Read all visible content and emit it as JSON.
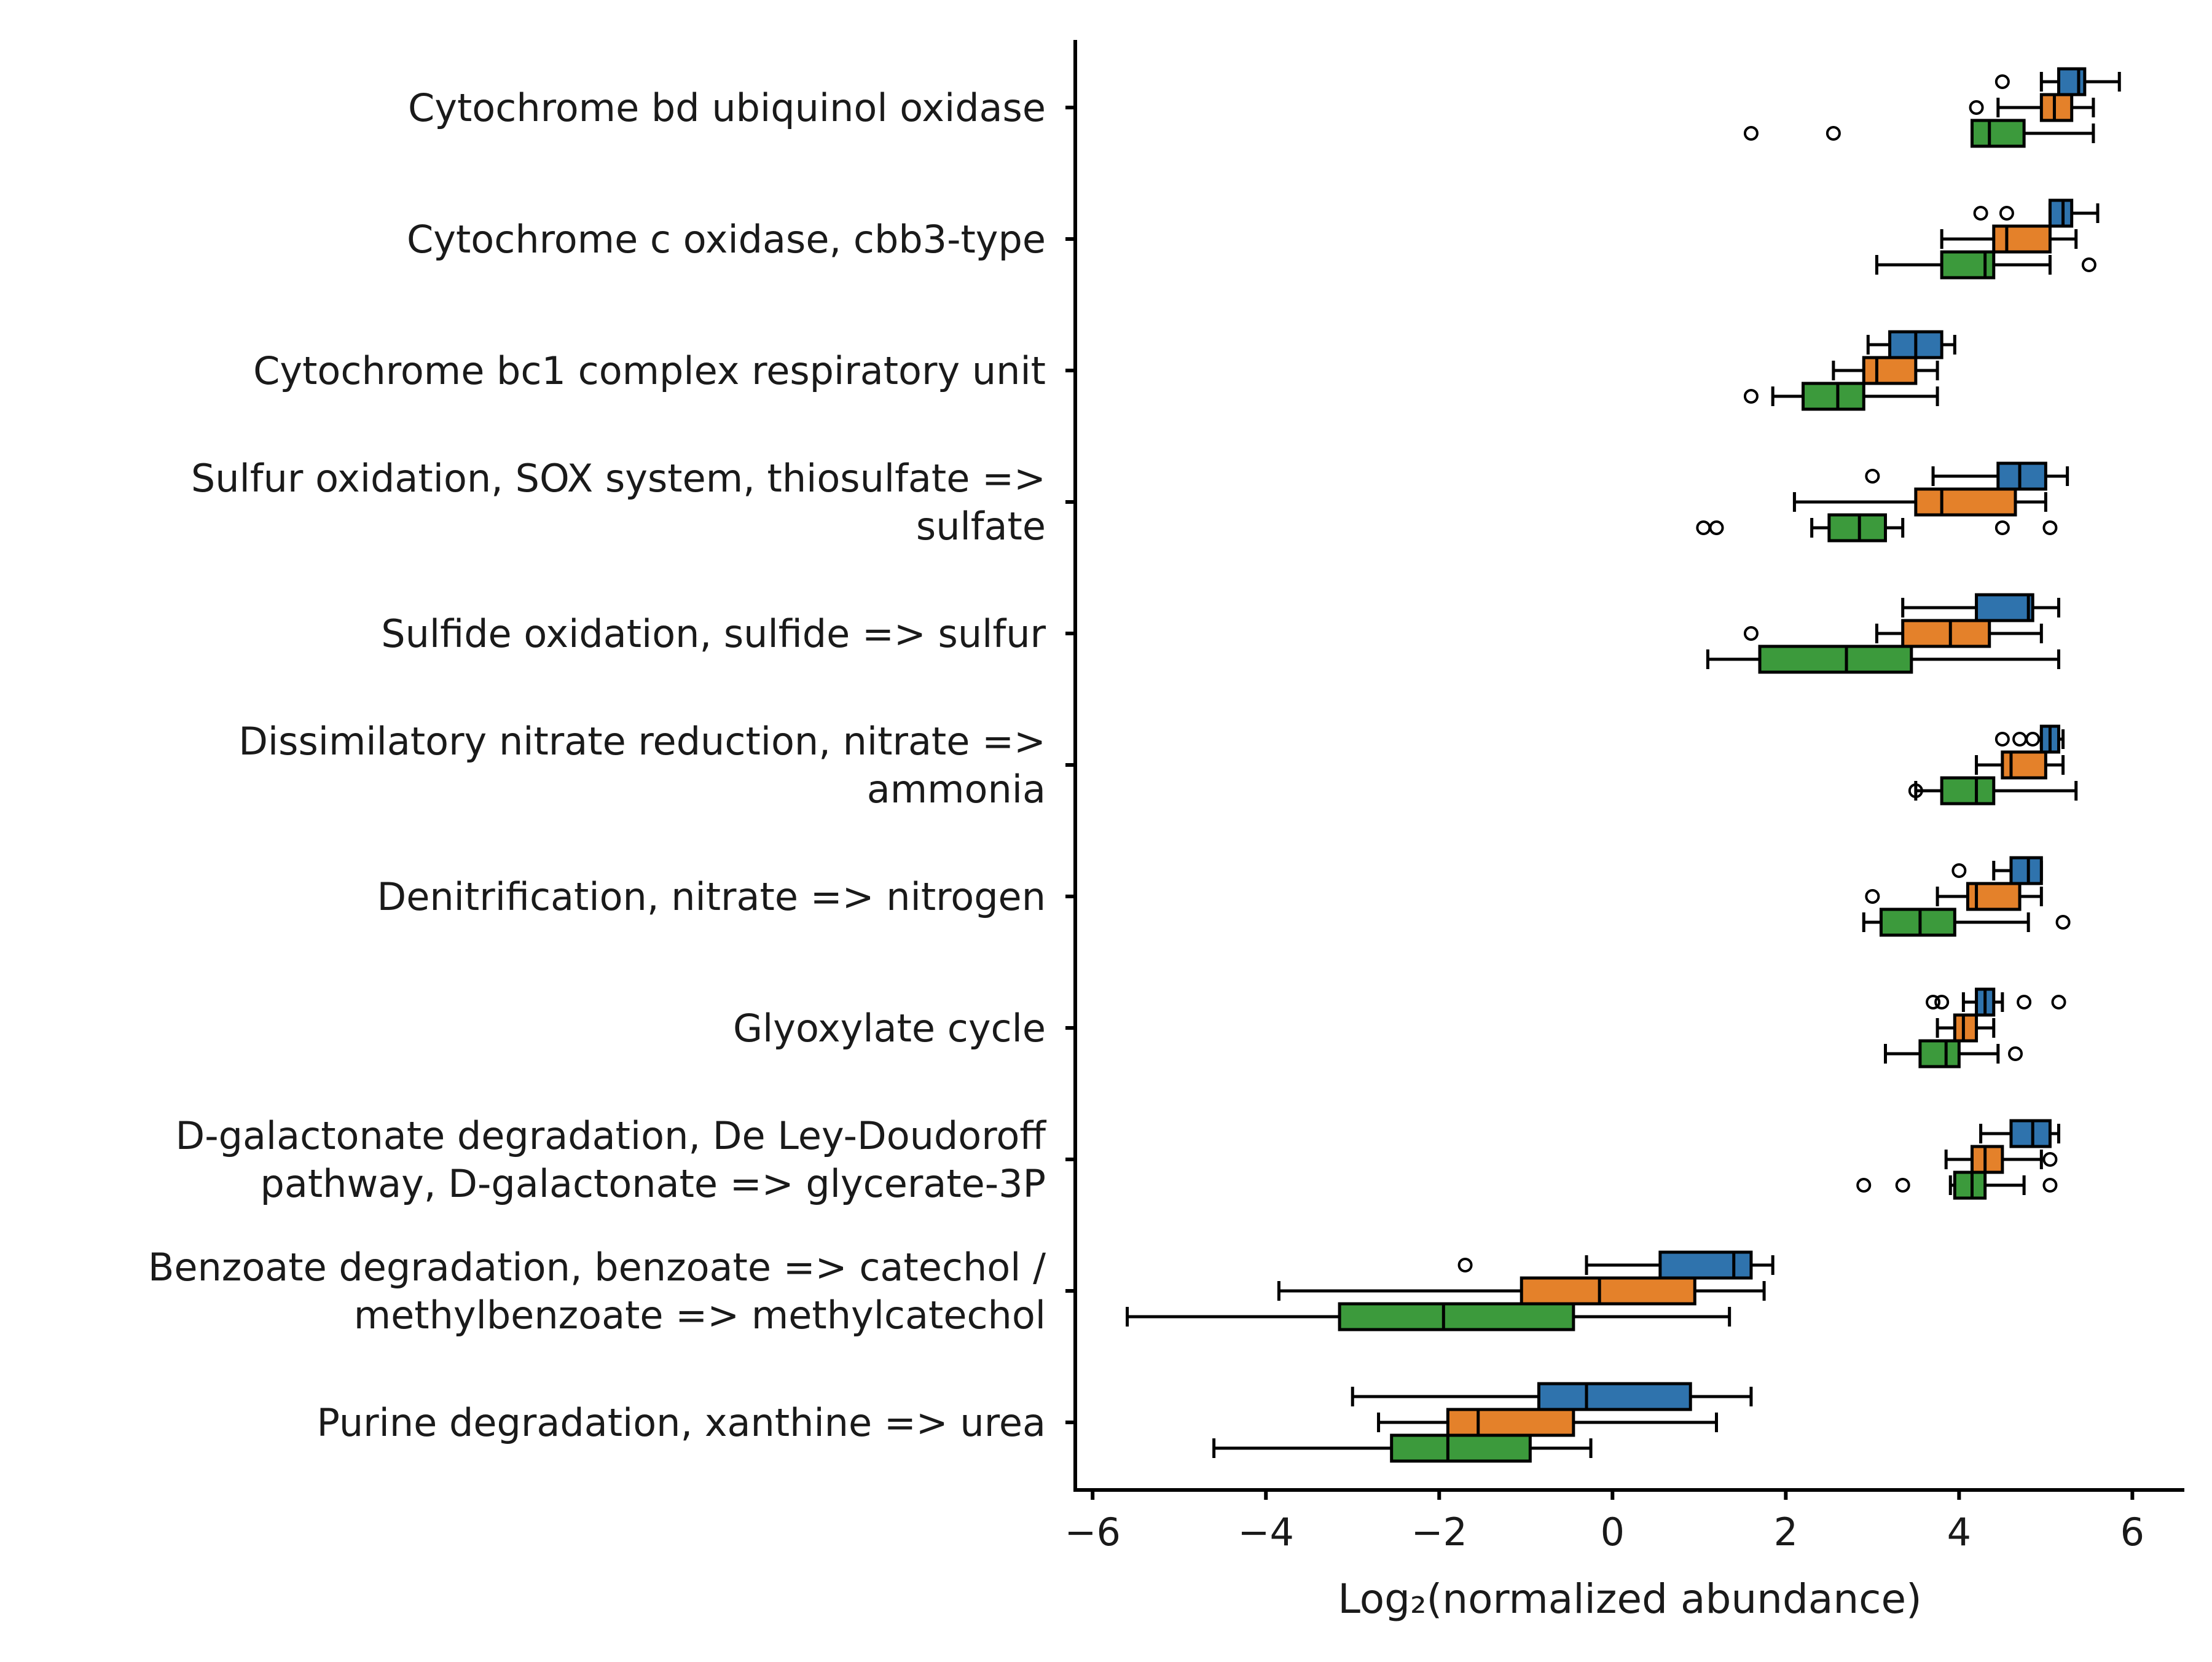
{
  "chart_data": {
    "type": "boxplot",
    "orientation": "horizontal",
    "title": "",
    "xlabel": "Log₂(normalized abundance)",
    "ylabel": "",
    "xlim": [
      -6.2,
      6.6
    ],
    "xticks": [
      -6,
      -4,
      -2,
      0,
      2,
      4,
      6
    ],
    "xtick_labels": [
      "−6",
      "−4",
      "−2",
      "0",
      "2",
      "4",
      "6"
    ],
    "grid": false,
    "legend": null,
    "series_colors": [
      "#2f73ad",
      "#e4812a",
      "#3c9a3c"
    ],
    "categories": [
      {
        "label": [
          "Cytochrome bd ubiquinol oxidase"
        ],
        "boxes": [
          {
            "whislo": 4.95,
            "q1": 5.15,
            "med": 5.38,
            "q3": 5.45,
            "whishi": 5.85,
            "fliers": [
              4.5
            ]
          },
          {
            "whislo": 4.45,
            "q1": 4.95,
            "med": 5.1,
            "q3": 5.3,
            "whishi": 5.55,
            "fliers": [
              4.2
            ]
          },
          {
            "whislo": 4.15,
            "q1": 4.15,
            "med": 4.35,
            "q3": 4.75,
            "whishi": 5.55,
            "fliers": [
              1.6,
              2.55
            ]
          }
        ]
      },
      {
        "label": [
          "Cytochrome c oxidase, cbb3-type"
        ],
        "boxes": [
          {
            "whislo": 5.05,
            "q1": 5.05,
            "med": 5.2,
            "q3": 5.3,
            "whishi": 5.6,
            "fliers": [
              4.25,
              4.55
            ]
          },
          {
            "whislo": 3.8,
            "q1": 4.4,
            "med": 4.55,
            "q3": 5.05,
            "whishi": 5.35,
            "fliers": []
          },
          {
            "whislo": 3.05,
            "q1": 3.8,
            "med": 4.3,
            "q3": 4.4,
            "whishi": 5.05,
            "fliers": [
              5.5
            ]
          }
        ]
      },
      {
        "label": [
          "Cytochrome bc1 complex respiratory unit"
        ],
        "boxes": [
          {
            "whislo": 2.95,
            "q1": 3.2,
            "med": 3.5,
            "q3": 3.8,
            "whishi": 3.95,
            "fliers": []
          },
          {
            "whislo": 2.55,
            "q1": 2.9,
            "med": 3.05,
            "q3": 3.5,
            "whishi": 3.75,
            "fliers": []
          },
          {
            "whislo": 1.85,
            "q1": 2.2,
            "med": 2.6,
            "q3": 2.9,
            "whishi": 3.75,
            "fliers": [
              1.6
            ]
          }
        ]
      },
      {
        "label": [
          "Sulfur oxidation, SOX system, thiosulfate =>",
          "sulfate"
        ],
        "boxes": [
          {
            "whislo": 3.7,
            "q1": 4.45,
            "med": 4.7,
            "q3": 5.0,
            "whishi": 5.25,
            "fliers": [
              3.0
            ]
          },
          {
            "whislo": 2.1,
            "q1": 3.5,
            "med": 3.8,
            "q3": 4.65,
            "whishi": 5.0,
            "fliers": []
          },
          {
            "whislo": 2.3,
            "q1": 2.5,
            "med": 2.85,
            "q3": 3.15,
            "whishi": 3.35,
            "fliers": [
              1.05,
              1.2,
              4.5,
              5.05
            ]
          }
        ]
      },
      {
        "label": [
          "Sulfide oxidation, sulfide => sulfur"
        ],
        "boxes": [
          {
            "whislo": 3.35,
            "q1": 4.2,
            "med": 4.8,
            "q3": 4.85,
            "whishi": 5.15,
            "fliers": []
          },
          {
            "whislo": 3.05,
            "q1": 3.35,
            "med": 3.9,
            "q3": 4.35,
            "whishi": 4.95,
            "fliers": [
              1.6
            ]
          },
          {
            "whislo": 1.1,
            "q1": 1.7,
            "med": 2.7,
            "q3": 3.45,
            "whishi": 5.15,
            "fliers": []
          }
        ]
      },
      {
        "label": [
          "Dissimilatory nitrate reduction, nitrate =>",
          "ammonia"
        ],
        "boxes": [
          {
            "whislo": 4.95,
            "q1": 4.95,
            "med": 5.05,
            "q3": 5.15,
            "whishi": 5.2,
            "fliers": [
              4.5,
              4.7,
              4.85
            ]
          },
          {
            "whislo": 4.2,
            "q1": 4.5,
            "med": 4.6,
            "q3": 5.0,
            "whishi": 5.2,
            "fliers": []
          },
          {
            "whislo": 3.5,
            "q1": 3.8,
            "med": 4.2,
            "q3": 4.4,
            "whishi": 5.35,
            "fliers": [
              3.5
            ]
          }
        ]
      },
      {
        "label": [
          "Denitrification, nitrate => nitrogen"
        ],
        "boxes": [
          {
            "whislo": 4.4,
            "q1": 4.6,
            "med": 4.8,
            "q3": 4.95,
            "whishi": 4.95,
            "fliers": [
              4.0
            ]
          },
          {
            "whislo": 3.75,
            "q1": 4.1,
            "med": 4.2,
            "q3": 4.7,
            "whishi": 4.95,
            "fliers": [
              3.0
            ]
          },
          {
            "whislo": 2.9,
            "q1": 3.1,
            "med": 3.55,
            "q3": 3.95,
            "whishi": 4.8,
            "fliers": [
              5.2
            ]
          }
        ]
      },
      {
        "label": [
          "Glyoxylate cycle"
        ],
        "boxes": [
          {
            "whislo": 4.05,
            "q1": 4.2,
            "med": 4.3,
            "q3": 4.4,
            "whishi": 4.5,
            "fliers": [
              3.7,
              3.8,
              4.75,
              5.15
            ]
          },
          {
            "whislo": 3.75,
            "q1": 3.95,
            "med": 4.05,
            "q3": 4.2,
            "whishi": 4.4,
            "fliers": []
          },
          {
            "whislo": 3.15,
            "q1": 3.55,
            "med": 3.85,
            "q3": 4.0,
            "whishi": 4.45,
            "fliers": [
              4.65
            ]
          }
        ]
      },
      {
        "label": [
          "D-galactonate degradation, De Ley-Doudoroff",
          "pathway, D-galactonate => glycerate-3P"
        ],
        "boxes": [
          {
            "whislo": 4.25,
            "q1": 4.6,
            "med": 4.85,
            "q3": 5.05,
            "whishi": 5.15,
            "fliers": []
          },
          {
            "whislo": 3.85,
            "q1": 4.15,
            "med": 4.3,
            "q3": 4.5,
            "whishi": 4.95,
            "fliers": [
              5.05
            ]
          },
          {
            "whislo": 3.9,
            "q1": 3.95,
            "med": 4.15,
            "q3": 4.3,
            "whishi": 4.75,
            "fliers": [
              2.9,
              3.35,
              5.05
            ]
          }
        ]
      },
      {
        "label": [
          "Benzoate degradation, benzoate => catechol /",
          "methylbenzoate => methylcatechol"
        ],
        "boxes": [
          {
            "whislo": -0.3,
            "q1": 0.55,
            "med": 1.4,
            "q3": 1.6,
            "whishi": 1.85,
            "fliers": [
              -1.7
            ]
          },
          {
            "whislo": -3.85,
            "q1": -1.05,
            "med": -0.15,
            "q3": 0.95,
            "whishi": 1.75,
            "fliers": []
          },
          {
            "whislo": -5.6,
            "q1": -3.15,
            "med": -1.95,
            "q3": -0.45,
            "whishi": 1.35,
            "fliers": []
          }
        ]
      },
      {
        "label": [
          "Purine degradation, xanthine => urea"
        ],
        "boxes": [
          {
            "whislo": -3.0,
            "q1": -0.85,
            "med": -0.3,
            "q3": 0.9,
            "whishi": 1.6,
            "fliers": []
          },
          {
            "whislo": -2.7,
            "q1": -1.9,
            "med": -1.55,
            "q3": -0.45,
            "whishi": 1.2,
            "fliers": []
          },
          {
            "whislo": -4.6,
            "q1": -2.55,
            "med": -1.9,
            "q3": -0.95,
            "whishi": -0.25,
            "fliers": []
          }
        ]
      }
    ]
  }
}
